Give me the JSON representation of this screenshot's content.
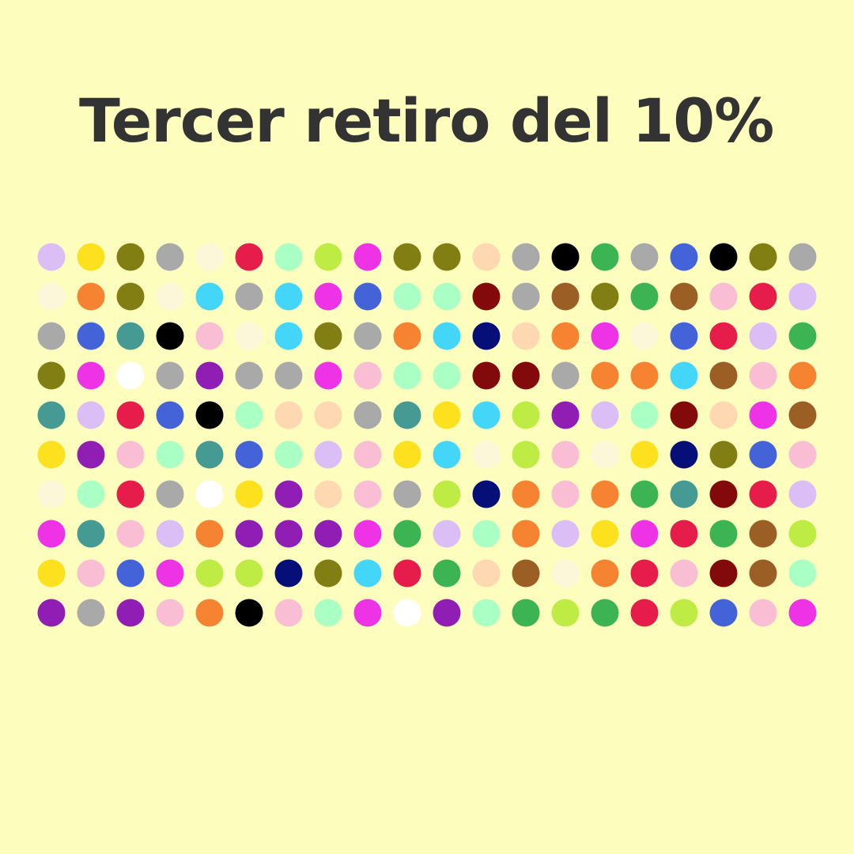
{
  "title": "Tercer retiro del 10%",
  "chart_data": {
    "type": "waffle",
    "title": "Tercer retiro del 10%",
    "rows": 10,
    "columns": 20,
    "background": "#fdfdbd",
    "palette": {
      "lav": "#dcbef7",
      "yel": "#fde01e",
      "oli": "#817f14",
      "gry": "#a9a9a9",
      "bei": "#fcf7d9",
      "crm": "#e61d4b",
      "mnt": "#aaffc5",
      "lim": "#bfec44",
      "mag": "#ee33e6",
      "apr": "#fed8b0",
      "blk": "#000000",
      "grn": "#3db454",
      "blu": "#4463d9",
      "cya": "#44d6f8",
      "org": "#f58331",
      "mar": "#820a0a",
      "brn": "#9b5f26",
      "pnk": "#f9bed4",
      "tea": "#469a94",
      "nav": "#060e78",
      "wht": "#ffffff",
      "pur": "#911eb4"
    },
    "cells": [
      [
        "lav",
        "yel",
        "oli",
        "gry",
        "bei",
        "crm",
        "mnt",
        "lim",
        "mag",
        "oli",
        "oli",
        "apr",
        "gry",
        "blk",
        "grn",
        "gry",
        "blu",
        "blk",
        "oli",
        "gry"
      ],
      [
        "bei",
        "org",
        "oli",
        "bei",
        "cya",
        "gry",
        "cya",
        "mag",
        "blu",
        "mnt",
        "mnt",
        "mar",
        "gry",
        "brn",
        "oli",
        "grn",
        "brn",
        "pnk",
        "crm",
        "lav"
      ],
      [
        "gry",
        "blu",
        "tea",
        "blk",
        "pnk",
        "bei",
        "cya",
        "oli",
        "gry",
        "org",
        "cya",
        "nav",
        "apr",
        "org",
        "mag",
        "bei",
        "blu",
        "crm",
        "lav",
        "grn"
      ],
      [
        "oli",
        "mag",
        "wht",
        "gry",
        "pur",
        "gry",
        "gry",
        "mag",
        "pnk",
        "mnt",
        "mnt",
        "mar",
        "mar",
        "gry",
        "org",
        "org",
        "cya",
        "brn",
        "pnk",
        "org"
      ],
      [
        "tea",
        "lav",
        "crm",
        "blu",
        "blk",
        "mnt",
        "apr",
        "apr",
        "gry",
        "tea",
        "yel",
        "cya",
        "lim",
        "pur",
        "lav",
        "mnt",
        "mar",
        "apr",
        "mag",
        "brn"
      ],
      [
        "yel",
        "pur",
        "pnk",
        "mnt",
        "tea",
        "blu",
        "mnt",
        "lav",
        "pnk",
        "yel",
        "cya",
        "bei",
        "lim",
        "pnk",
        "bei",
        "yel",
        "nav",
        "oli",
        "blu",
        "pnk"
      ],
      [
        "bei",
        "mnt",
        "crm",
        "gry",
        "wht",
        "yel",
        "pur",
        "apr",
        "pnk",
        "gry",
        "lim",
        "nav",
        "org",
        "pnk",
        "org",
        "grn",
        "tea",
        "mar",
        "crm",
        "lav"
      ],
      [
        "mag",
        "tea",
        "pnk",
        "lav",
        "org",
        "pur",
        "pur",
        "pur",
        "mag",
        "grn",
        "lav",
        "mnt",
        "org",
        "lav",
        "yel",
        "mag",
        "crm",
        "grn",
        "brn",
        "lim"
      ],
      [
        "yel",
        "pnk",
        "blu",
        "mag",
        "lim",
        "lim",
        "nav",
        "oli",
        "cya",
        "crm",
        "grn",
        "apr",
        "brn",
        "bei",
        "org",
        "crm",
        "pnk",
        "mar",
        "brn",
        "mnt"
      ],
      [
        "pur",
        "gry",
        "pur",
        "pnk",
        "org",
        "blk",
        "pnk",
        "mnt",
        "mag",
        "wht",
        "pur",
        "mnt",
        "grn",
        "lim",
        "grn",
        "crm",
        "lim",
        "blu",
        "pnk",
        "mag"
      ]
    ]
  }
}
